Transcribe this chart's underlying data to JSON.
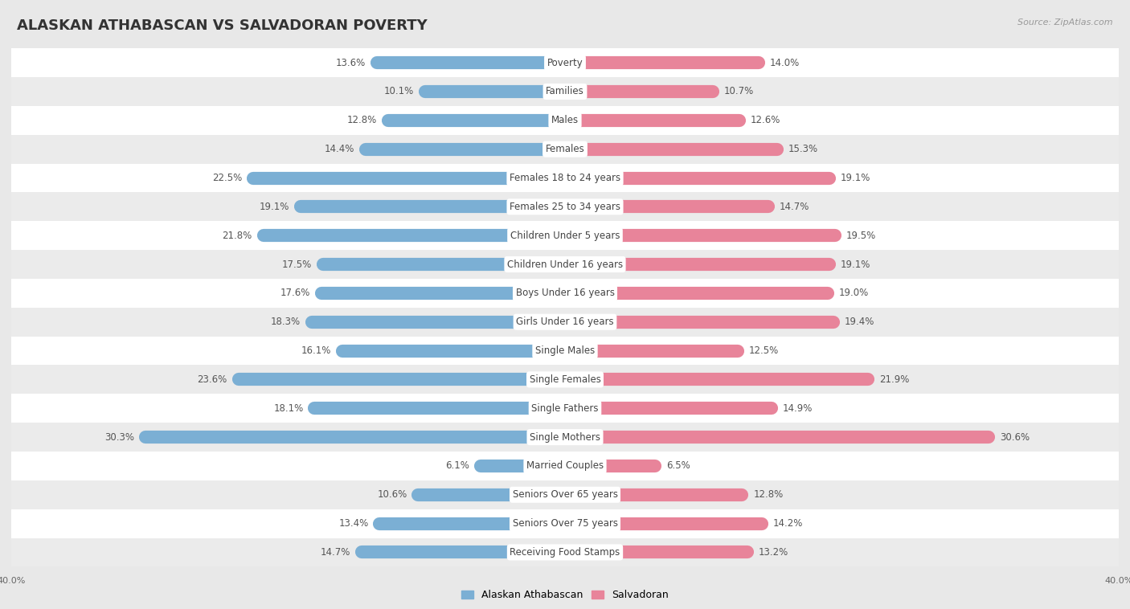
{
  "title": "ALASKAN ATHABASCAN VS SALVADORAN POVERTY",
  "source": "Source: ZipAtlas.com",
  "categories": [
    "Poverty",
    "Families",
    "Males",
    "Females",
    "Females 18 to 24 years",
    "Females 25 to 34 years",
    "Children Under 5 years",
    "Children Under 16 years",
    "Boys Under 16 years",
    "Girls Under 16 years",
    "Single Males",
    "Single Females",
    "Single Fathers",
    "Single Mothers",
    "Married Couples",
    "Seniors Over 65 years",
    "Seniors Over 75 years",
    "Receiving Food Stamps"
  ],
  "left_values": [
    13.6,
    10.1,
    12.8,
    14.4,
    22.5,
    19.1,
    21.8,
    17.5,
    17.6,
    18.3,
    16.1,
    23.6,
    18.1,
    30.3,
    6.1,
    10.6,
    13.4,
    14.7
  ],
  "right_values": [
    14.0,
    10.7,
    12.6,
    15.3,
    19.1,
    14.7,
    19.5,
    19.1,
    19.0,
    19.4,
    12.5,
    21.9,
    14.9,
    30.6,
    6.5,
    12.8,
    14.2,
    13.2
  ],
  "left_color": "#7bafd4",
  "right_color": "#e8849a",
  "left_label": "Alaskan Athabascan",
  "right_label": "Salvadoran",
  "x_max": 40.0,
  "bg_color": "#e8e8e8",
  "row_color_even": "#ffffff",
  "row_color_odd": "#ebebeb",
  "title_fontsize": 13,
  "label_fontsize": 8.5,
  "value_fontsize": 8.5,
  "tick_fontsize": 8
}
